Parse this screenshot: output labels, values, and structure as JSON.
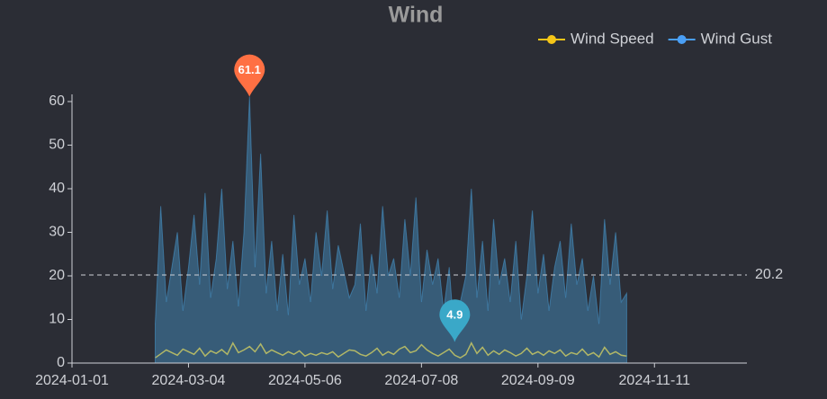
{
  "chart_data": {
    "type": "line",
    "title": "Wind",
    "x": [
      "2024-02-15",
      "2024-02-18",
      "2024-02-21",
      "2024-02-24",
      "2024-02-27",
      "2024-03-01",
      "2024-03-04",
      "2024-03-07",
      "2024-03-10",
      "2024-03-13",
      "2024-03-16",
      "2024-03-19",
      "2024-03-22",
      "2024-03-25",
      "2024-03-28",
      "2024-03-31",
      "2024-04-03",
      "2024-04-06",
      "2024-04-09",
      "2024-04-12",
      "2024-04-15",
      "2024-04-18",
      "2024-04-21",
      "2024-04-24",
      "2024-04-27",
      "2024-04-30",
      "2024-05-03",
      "2024-05-06",
      "2024-05-09",
      "2024-05-12",
      "2024-05-15",
      "2024-05-18",
      "2024-05-21",
      "2024-05-24",
      "2024-05-27",
      "2024-05-30",
      "2024-06-02",
      "2024-06-05",
      "2024-06-08",
      "2024-06-11",
      "2024-06-14",
      "2024-06-17",
      "2024-06-20",
      "2024-06-23",
      "2024-06-26",
      "2024-06-29",
      "2024-07-02",
      "2024-07-05",
      "2024-07-08",
      "2024-07-11",
      "2024-07-14",
      "2024-07-17",
      "2024-07-20",
      "2024-07-23",
      "2024-07-26",
      "2024-07-29",
      "2024-08-01",
      "2024-08-04",
      "2024-08-07",
      "2024-08-10",
      "2024-08-13",
      "2024-08-16",
      "2024-08-19",
      "2024-08-22",
      "2024-08-25",
      "2024-08-28",
      "2024-08-31",
      "2024-09-03",
      "2024-09-06",
      "2024-09-09",
      "2024-09-12",
      "2024-09-15",
      "2024-09-18",
      "2024-09-21",
      "2024-09-24",
      "2024-09-27",
      "2024-09-30",
      "2024-10-03",
      "2024-10-06",
      "2024-10-09",
      "2024-10-12",
      "2024-10-15",
      "2024-10-18",
      "2024-10-21",
      "2024-10-24",
      "2024-10-27"
    ],
    "series": [
      {
        "name": "Wind Speed",
        "color": "#f5c518",
        "area": false,
        "values": [
          1.2,
          2.1,
          3,
          2.4,
          1.8,
          3.2,
          2.6,
          2,
          3.4,
          1.6,
          2.8,
          2.2,
          3.1,
          2,
          4.6,
          2.4,
          3,
          3.8,
          2.6,
          4.4,
          2.2,
          3,
          2.4,
          1.8,
          2.6,
          2,
          2.8,
          1.6,
          2.2,
          1.8,
          2.4,
          2,
          2.6,
          1.4,
          2.2,
          3,
          2.8,
          2,
          1.6,
          2.4,
          3.4,
          1.8,
          2.6,
          2,
          3.2,
          3.8,
          2.4,
          2.8,
          4.2,
          3,
          2.2,
          1.6,
          2.4,
          3.2,
          1.8,
          1.2,
          2,
          4.6,
          2.2,
          3.6,
          1.8,
          2.8,
          2,
          3,
          2.4,
          1.6,
          2.2,
          3.4,
          2,
          2.6,
          1.8,
          2.8,
          2.2,
          3,
          1.6,
          2.4,
          2,
          3.2,
          1.8,
          2.4,
          1.4,
          3.6,
          2,
          2.6,
          1.8,
          1.6
        ]
      },
      {
        "name": "Wind Gust",
        "color": "#4aa3df",
        "area": true,
        "max_color": "#ff7043",
        "min_color": "#3aa8c8",
        "values": [
          9,
          36,
          14,
          22,
          30,
          12,
          22,
          34,
          18,
          39,
          15,
          24,
          40,
          17,
          28,
          13,
          30,
          61.1,
          22,
          48,
          16,
          28,
          12,
          25,
          11,
          34,
          18,
          24,
          14,
          30,
          20,
          35,
          17,
          27,
          21,
          15,
          18,
          32,
          12,
          25,
          16,
          36,
          20,
          24,
          15,
          33,
          20,
          38,
          14,
          26,
          18,
          24,
          12,
          22,
          4.9,
          14,
          20,
          40,
          15,
          28,
          12,
          33,
          18,
          24,
          14,
          28,
          10,
          20,
          35,
          16,
          25,
          12,
          22,
          28,
          15,
          32,
          18,
          24,
          12,
          20,
          9,
          33,
          18,
          30,
          14,
          16
        ]
      }
    ],
    "mark_line": {
      "value": 20.2
    },
    "xlim": [
      "2024-01-01",
      "2024-12-31"
    ],
    "xticks": [
      "2024-01-01",
      "2024-03-04",
      "2024-05-06",
      "2024-07-08",
      "2024-09-09",
      "2024-11-11"
    ],
    "ylim": [
      0,
      60
    ],
    "yticks": [
      0,
      10,
      20,
      30,
      40,
      50,
      60
    ],
    "grid": false
  }
}
